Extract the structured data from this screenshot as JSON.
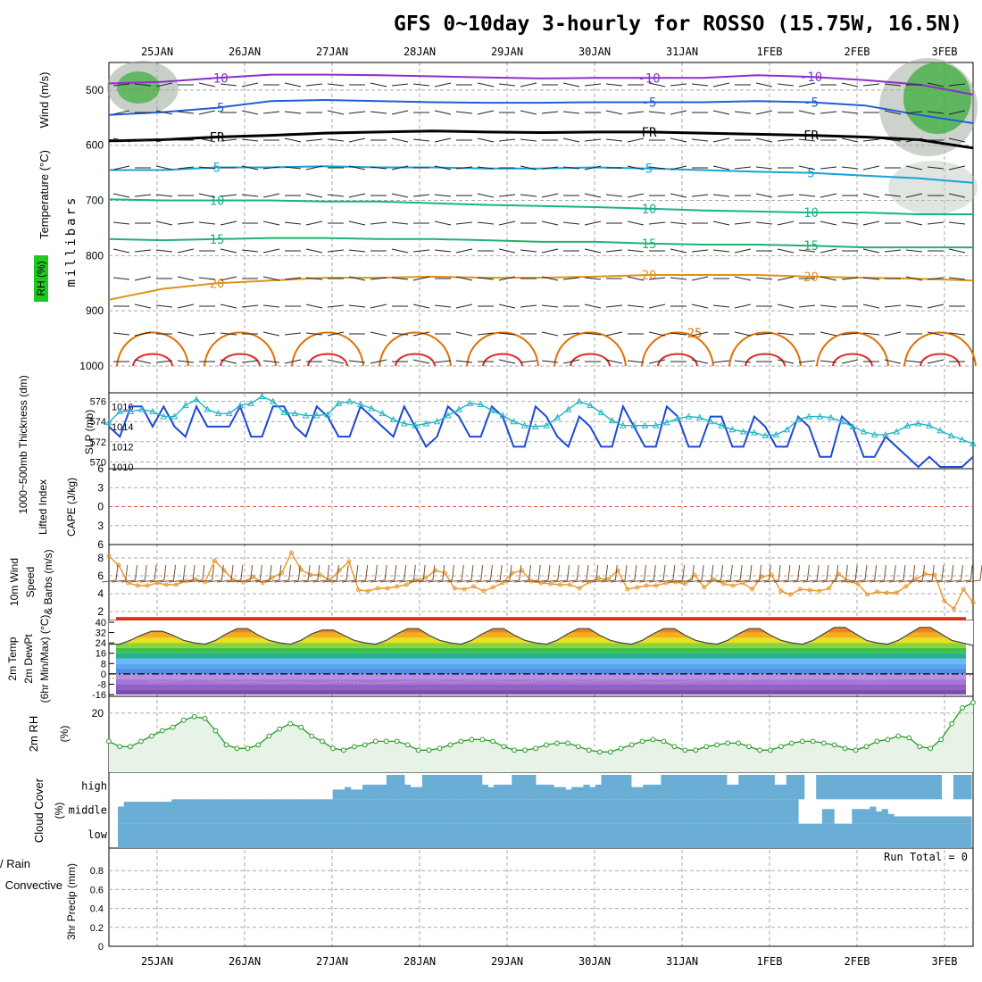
{
  "title": "GFS 0~10day 3-hourly for ROSSO (15.75W, 16.5N)",
  "dates": [
    "25JAN",
    "26JAN",
    "27JAN",
    "28JAN",
    "29JAN",
    "30JAN",
    "31JAN",
    "1FEB",
    "2FEB",
    "3FEB"
  ],
  "colors": {
    "purple": "#8b2fc9",
    "blue": "#1f5fd6",
    "cyan": "#1aa1d8",
    "teal": "#18b38a",
    "green15": "#20b070",
    "orange": "#e0921a",
    "darkorange": "#e07000",
    "red": "#e02828",
    "slp": "#1f48d6",
    "thick": "#22b4c4",
    "wind": "#e8962a",
    "rhline": "#2a9a2a",
    "cloud": "#6aaed6"
  },
  "chart_data": [
    {
      "type": "contour",
      "name": "upper-air-cross-section",
      "ylabel_left": [
        "Temperature (°C)",
        "Wind (m/s)",
        "RH (%)"
      ],
      "ylabel": "millibars",
      "y_ticks": [
        500,
        600,
        700,
        800,
        900,
        1000
      ],
      "ylim": [
        450,
        1000
      ],
      "contours": [
        {
          "label": "-10",
          "color": "#8b2fc9",
          "pressure": [
            488,
            485,
            478,
            472,
            472,
            473,
            475,
            477,
            479,
            478,
            478,
            478,
            473,
            476,
            482,
            490,
            508
          ]
        },
        {
          "label": "-5",
          "color": "#1f5fd6",
          "pressure": [
            545,
            540,
            532,
            520,
            518,
            520,
            522,
            523,
            523,
            522,
            522,
            522,
            520,
            522,
            528,
            545,
            560
          ]
        },
        {
          "label": "FR",
          "color": "#000000",
          "pressure": [
            592,
            590,
            585,
            582,
            578,
            576,
            574,
            576,
            577,
            576,
            576,
            578,
            580,
            582,
            585,
            590,
            605
          ]
        },
        {
          "label": "5",
          "color": "#1aa1d8",
          "pressure": [
            645,
            645,
            640,
            640,
            638,
            640,
            640,
            642,
            642,
            640,
            642,
            645,
            648,
            650,
            655,
            660,
            668
          ]
        },
        {
          "label": "10",
          "color": "#18b38a",
          "pressure": [
            698,
            700,
            700,
            700,
            702,
            702,
            705,
            708,
            710,
            712,
            715,
            718,
            720,
            722,
            722,
            725,
            725
          ]
        },
        {
          "label": "15",
          "color": "#20b070",
          "pressure": [
            770,
            772,
            770,
            768,
            768,
            770,
            770,
            772,
            775,
            775,
            778,
            780,
            780,
            782,
            785,
            785,
            785
          ]
        },
        {
          "label": "20",
          "color": "#e0921a",
          "pressure": [
            880,
            860,
            850,
            845,
            840,
            840,
            838,
            840,
            840,
            838,
            835,
            835,
            835,
            838,
            840,
            842,
            845
          ]
        },
        {
          "label": "25",
          "color": "#e07000",
          "pressure": []
        }
      ]
    },
    {
      "type": "line",
      "name": "slp-thickness",
      "ylabel_left": "1000~500mb Thickness (dm)",
      "ylabel_right": "SLP (mb)",
      "thickness_ticks": [
        570,
        572,
        574,
        576
      ],
      "slp_ticks": [
        1010,
        1012,
        1014,
        1016
      ],
      "series": [
        {
          "name": "SLP",
          "values": [
            1014,
            1013,
            1016,
            1016,
            1014,
            1016,
            1014,
            1013,
            1016,
            1014,
            1014,
            1014,
            1016,
            1013,
            1013,
            1016,
            1016,
            1014,
            1013,
            1016,
            1015,
            1013,
            1013,
            1016,
            1015,
            1014,
            1013,
            1016,
            1014,
            1012,
            1013,
            1016,
            1015,
            1013,
            1013,
            1016,
            1015,
            1012,
            1012,
            1016,
            1015,
            1013,
            1012,
            1015,
            1014,
            1012,
            1012,
            1016,
            1014,
            1012,
            1012,
            1016,
            1015,
            1012,
            1012,
            1015,
            1015,
            1012,
            1012,
            1015,
            1014,
            1012,
            1012,
            1015,
            1014,
            1011,
            1011,
            1015,
            1014,
            1011,
            1011,
            1013,
            1012,
            1011,
            1010,
            1011,
            1010,
            1010,
            1010,
            1011
          ]
        },
        {
          "name": "Thickness",
          "values": [
            573.9,
            575.0,
            575.0,
            575.2,
            575.0,
            574.5,
            574.5,
            575.6,
            576.2,
            575.2,
            574.8,
            574.8,
            575.6,
            575.8,
            576.5,
            576.0,
            574.9,
            574.8,
            574.6,
            574.6,
            574.7,
            575.8,
            576.0,
            575.7,
            575.3,
            574.8,
            574.2,
            573.8,
            573.6,
            573.8,
            574.0,
            574.6,
            575.2,
            575.8,
            575.7,
            575.1,
            574.6,
            574.0,
            573.6,
            573.5,
            573.6,
            574.4,
            575.2,
            576.0,
            575.6,
            574.9,
            574.1,
            573.6,
            573.6,
            573.6,
            573.6,
            573.9,
            574.3,
            574.5,
            574.4,
            574.0,
            573.6,
            573.2,
            573.0,
            572.9,
            572.6,
            572.7,
            573.2,
            574.2,
            574.5,
            574.5,
            574.4,
            574.0,
            573.5,
            573.0,
            572.7,
            572.7,
            573.0,
            573.6,
            573.8,
            573.6,
            573.1,
            572.6,
            572.2,
            571.8
          ]
        }
      ]
    },
    {
      "type": "line",
      "name": "cape-lifted-index",
      "ylabel_left": "Lifted Index",
      "ylabel_right": "CAPE (J/kg)",
      "ticks": [
        "6",
        "3",
        "0",
        "3",
        "6"
      ],
      "series": [
        {
          "name": "Lifted Index",
          "values": []
        }
      ]
    },
    {
      "type": "line",
      "name": "10m-wind",
      "ylabel_left": "10m Wind",
      "ylabel_sub": "Speed",
      "ylabel_right": "& Barbs (m/s)",
      "ticks": [
        2,
        4,
        6,
        8
      ],
      "series": [
        {
          "name": "Speed",
          "values": [
            8.2,
            7.2,
            5.2,
            4.9,
            4.9,
            5.2,
            5.0,
            5.0,
            5.4,
            5.6,
            5.3,
            7.7,
            6.6,
            5.5,
            5.3,
            5.9,
            5.2,
            5.8,
            6.3,
            8.6,
            6.7,
            6.1,
            6.1,
            5.5,
            6.6,
            7.6,
            4.4,
            4.3,
            4.6,
            4.6,
            4.8,
            5.0,
            5.5,
            5.8,
            6.6,
            6.3,
            4.6,
            4.5,
            4.8,
            4.3,
            4.7,
            5.2,
            6.3,
            6.6,
            5.4,
            5.2,
            5.1,
            5.0,
            5.0,
            4.6,
            5.3,
            5.7,
            5.6,
            6.6,
            4.5,
            4.7,
            4.9,
            4.9,
            5.2,
            5.3,
            5.1,
            6.1,
            4.7,
            5.6,
            5.1,
            4.9,
            5.2,
            4.5,
            5.9,
            6.1,
            4.3,
            3.9,
            4.5,
            4.4,
            4.3,
            4.6,
            6.2,
            5.4,
            5.1,
            3.9,
            4.2,
            4.1,
            4.1,
            4.8,
            5.6,
            6.2,
            6.1,
            3.2,
            2.3,
            4.5,
            3.0
          ]
        }
      ]
    },
    {
      "type": "area",
      "name": "2m-temp-dewpoint",
      "ylabel_left": "2m Temp",
      "ylabel_sub": "2m DewPt",
      "ylabel_right": "(6hr Min/Max) (°C)",
      "ticks": [
        -16,
        -8,
        0,
        8,
        16,
        24,
        32,
        40
      ],
      "series": [
        {
          "name": "2m Temp",
          "values": [
            23,
            23,
            26,
            30,
            33,
            33,
            30,
            26,
            24,
            23,
            26,
            31,
            35,
            35,
            30,
            26,
            24,
            23,
            26,
            31,
            34,
            34,
            30,
            26,
            24,
            23,
            26,
            31,
            35,
            35,
            30,
            26,
            24,
            23,
            26,
            31,
            35,
            35,
            30,
            26,
            24,
            23,
            26,
            31,
            35,
            35,
            30,
            26,
            24,
            23,
            26,
            31,
            35,
            35,
            30,
            26,
            24,
            23,
            26,
            31,
            35,
            35,
            30,
            26,
            24,
            23,
            26,
            31,
            36,
            36,
            31,
            26,
            24,
            23,
            26,
            31,
            36,
            36,
            31,
            26,
            24,
            22
          ]
        },
        {
          "name": "2m DewPt",
          "values": [
            -4,
            -2,
            -2,
            -4,
            -6,
            -6,
            -5,
            -4,
            -4,
            -5,
            -6,
            -7,
            -6,
            -6,
            -7,
            -7,
            -6,
            -7,
            -8,
            -7,
            -6,
            -6,
            -7,
            -8,
            -7,
            -7,
            -6,
            -6,
            -5,
            -6,
            -7,
            -6,
            -5,
            -5,
            -6,
            -6,
            -7,
            -6,
            -5,
            -5,
            -5,
            -6,
            -6,
            -5,
            -5,
            -5,
            -5,
            -6,
            -7,
            -7,
            -6,
            -6,
            -5,
            -5,
            -4,
            -5,
            -5,
            -4,
            -4,
            -5,
            -4,
            -4,
            -3,
            -3,
            -3,
            -3,
            -4,
            -5,
            -4,
            -3,
            -3,
            -2,
            -2,
            -1,
            0,
            0,
            -2
          ]
        }
      ]
    },
    {
      "type": "line",
      "name": "2m-rh",
      "ylabel_left": "2m RH",
      "ylabel_right": "(%)",
      "ticks": [
        20
      ],
      "series": [
        {
          "name": "2m RH",
          "values": [
            12,
            10.5,
            10.5,
            12,
            13.5,
            15,
            16,
            18,
            19,
            18.5,
            15,
            11,
            10,
            10,
            11,
            13.5,
            15.5,
            17,
            16,
            13.5,
            12,
            10,
            9.5,
            10.5,
            11,
            12,
            12,
            12,
            11,
            9.5,
            9.5,
            10,
            11,
            12,
            12.5,
            12.5,
            12,
            10.5,
            9.5,
            9.5,
            10,
            11,
            11.5,
            11.5,
            10.5,
            9.5,
            9,
            9,
            10,
            11,
            12,
            12.5,
            12,
            10.5,
            9.5,
            9.5,
            10.5,
            11,
            11.5,
            11.5,
            10.5,
            9.5,
            9.5,
            10.5,
            11.5,
            12,
            12,
            11.5,
            11,
            10,
            9.5,
            10.5,
            12,
            12.5,
            13.5,
            13,
            10.5,
            10,
            12.5,
            17,
            21.5,
            23
          ]
        }
      ]
    },
    {
      "type": "heatmap",
      "name": "cloud-cover",
      "ylabel_left": "Cloud Cover",
      "ylabel_right": "(%)",
      "levels": [
        "high",
        "middle",
        "low"
      ],
      "high": [
        0,
        0,
        0,
        0,
        0,
        0,
        0,
        0,
        0,
        0,
        0,
        0,
        0,
        0,
        0,
        0,
        0,
        0,
        0,
        0,
        0,
        0,
        0,
        0,
        0,
        0,
        0,
        0,
        0,
        0,
        0,
        0,
        0,
        0,
        0,
        0,
        40,
        40,
        50,
        40,
        40,
        60,
        60,
        60,
        60,
        100,
        100,
        100,
        60,
        50,
        50,
        100,
        100,
        100,
        100,
        100,
        100,
        100,
        100,
        100,
        100,
        60,
        50,
        60,
        60,
        60,
        100,
        100,
        100,
        100,
        60,
        60,
        60,
        50,
        50,
        40,
        50,
        50,
        60,
        50,
        60,
        100,
        100,
        100,
        100,
        100,
        50,
        50,
        60,
        60,
        60,
        100,
        100,
        100,
        100,
        100,
        100,
        100,
        100,
        100,
        100,
        100,
        60,
        60,
        100,
        100,
        100,
        100,
        100,
        100,
        60,
        60,
        100,
        100,
        100,
        0,
        0,
        100,
        100,
        100,
        100,
        100,
        100,
        100,
        100,
        100,
        100,
        100,
        100,
        100,
        100,
        100,
        100,
        100,
        100,
        100,
        100,
        100,
        0,
        0,
        100,
        100,
        100
      ],
      "middle": [
        70,
        90,
        90,
        90,
        90,
        90,
        90,
        90,
        90,
        100,
        100,
        100,
        100,
        100,
        100,
        100,
        100,
        100,
        100,
        100,
        100,
        100,
        100,
        100,
        100,
        100,
        100,
        100,
        100,
        100,
        100,
        100,
        100,
        100,
        100,
        100,
        100,
        100,
        100,
        100,
        100,
        100,
        100,
        100,
        100,
        100,
        100,
        100,
        100,
        100,
        100,
        100,
        100,
        100,
        100,
        100,
        100,
        100,
        100,
        100,
        100,
        100,
        100,
        100,
        100,
        100,
        100,
        100,
        100,
        100,
        100,
        100,
        100,
        100,
        100,
        100,
        100,
        100,
        100,
        100,
        100,
        100,
        100,
        100,
        100,
        100,
        100,
        100,
        100,
        100,
        100,
        100,
        100,
        100,
        100,
        100,
        100,
        100,
        100,
        100,
        100,
        100,
        100,
        100,
        100,
        100,
        100,
        100,
        100,
        100,
        100,
        100,
        100,
        100,
        0,
        0,
        0,
        0,
        60,
        60,
        0,
        0,
        0,
        60,
        60,
        60,
        70,
        50,
        60,
        40,
        30,
        30,
        30,
        30,
        30,
        30,
        30,
        30,
        30,
        30,
        30,
        30,
        30
      ],
      "run_total_label": "Run Total = 0"
    },
    {
      "type": "bar",
      "name": "3hr-precip",
      "ylabel_left": "Total / Rain",
      "ylabel_sub": "Convective",
      "ylabel_right": "3hr Precip (mm)",
      "ticks": [
        "0",
        "0.2",
        "0.4",
        "0.6",
        "0.8"
      ],
      "ylim": [
        0,
        1
      ],
      "values": []
    }
  ]
}
